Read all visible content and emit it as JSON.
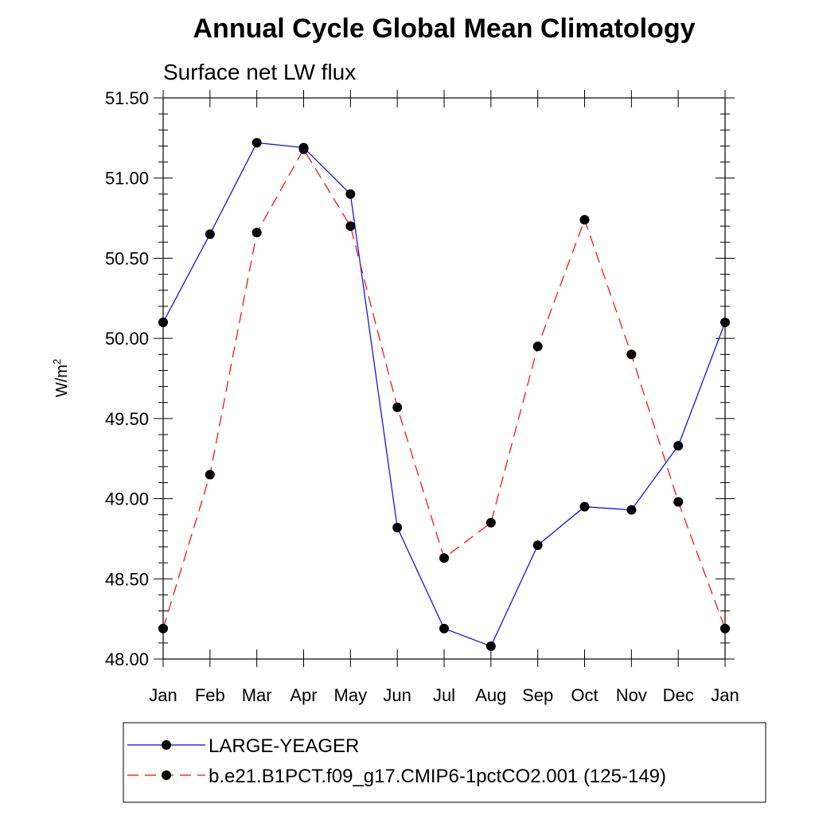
{
  "chart_data": {
    "type": "line",
    "title": "Annual Cycle Global Mean Climatology",
    "subtitle": "Surface net LW flux",
    "ylabel_base": "W/m",
    "ylabel_sup": "2",
    "ylim": [
      48.0,
      51.5
    ],
    "yticks": [
      48.0,
      48.5,
      49.0,
      49.5,
      50.0,
      50.5,
      51.0,
      51.5
    ],
    "ytick_labels": [
      "48.00",
      "48.50",
      "49.00",
      "49.50",
      "50.00",
      "50.50",
      "51.00",
      "51.50"
    ],
    "categories": [
      "Jan",
      "Feb",
      "Mar",
      "Apr",
      "May",
      "Jun",
      "Jul",
      "Aug",
      "Sep",
      "Oct",
      "Nov",
      "Dec",
      "Jan"
    ],
    "series": [
      {
        "name": "LARGE-YEAGER",
        "color": "#0000ff",
        "dash": "solid",
        "values": [
          50.1,
          50.65,
          51.22,
          51.19,
          50.9,
          48.82,
          48.19,
          48.08,
          48.71,
          48.95,
          48.93,
          49.33,
          50.1
        ]
      },
      {
        "name": "b.e21.B1PCT.f09_g17.CMIP6-1pctCO2.001 (125-149)",
        "color": "#ff0000",
        "dash": "dashed",
        "values": [
          48.19,
          49.15,
          50.66,
          51.18,
          50.7,
          49.57,
          48.63,
          48.85,
          49.95,
          50.74,
          49.9,
          48.98,
          48.19
        ]
      }
    ],
    "marker_color": "#000000",
    "grid": false,
    "legend_position": "bottom"
  }
}
